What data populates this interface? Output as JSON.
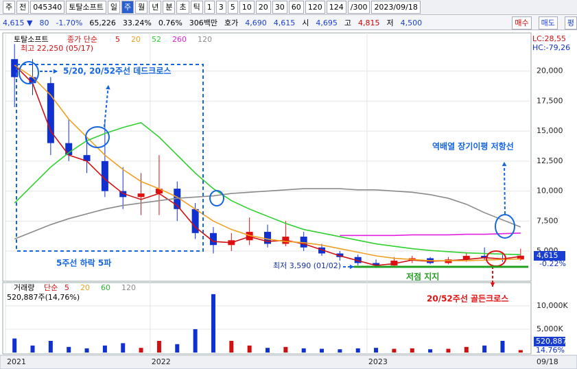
{
  "toolbar": {
    "items": [
      "주",
      "전",
      "045340",
      "토탈소프트",
      "일",
      "주",
      "월",
      "년",
      "분",
      "초",
      "틱",
      "1",
      "3",
      "5",
      "10",
      "20",
      "30",
      "60",
      "120",
      "124",
      "/300",
      "2023/09/18"
    ],
    "selected_index": 5
  },
  "quote": {
    "items": [
      {
        "text": "4,615 ▼",
        "color": "#1a3fd0"
      },
      {
        "text": "80",
        "color": "#1a3fd0"
      },
      {
        "text": "-1.70%",
        "color": "#1a3fd0"
      },
      {
        "text": "65,226",
        "color": "#000000"
      },
      {
        "text": "33.24%",
        "color": "#000000"
      },
      {
        "text": "0.76%",
        "color": "#000000"
      },
      {
        "text": "306백만",
        "color": "#000000"
      },
      {
        "text": "호가",
        "color": "#000000"
      },
      {
        "text": "4,690",
        "color": "#1a3fd0"
      },
      {
        "text": "4,615",
        "color": "#1a3fd0"
      },
      {
        "text": "시",
        "color": "#000000"
      },
      {
        "text": "4,695",
        "color": "#1a3fd0"
      },
      {
        "text": "고",
        "color": "#000000"
      },
      {
        "text": "4,815",
        "color": "#d00000"
      },
      {
        "text": "저",
        "color": "#000000"
      },
      {
        "text": "4,500",
        "color": "#1a3fd0"
      }
    ],
    "buttons": [
      "매수",
      "매도",
      "평"
    ]
  },
  "chart_data": [
    {
      "type": "candlestick",
      "title": "토탈소프트",
      "legend_title": "종가 단순",
      "high_note": "최고 22,250 (05/17)",
      "low_note": "최저 3,590 (01/02)",
      "lc": "LC:28,55",
      "hc": "HC:-79,26",
      "last_label": "4,615",
      "change_label": "-0.22%",
      "categories": [
        "2021",
        null,
        null,
        null,
        null,
        null,
        null,
        null,
        "2022",
        null,
        null,
        null,
        null,
        null,
        null,
        null,
        null,
        null,
        null,
        null,
        "2023",
        null,
        null,
        null,
        null,
        null,
        null,
        null,
        null
      ],
      "x_end_label": "09/18",
      "open": [
        21000,
        19500,
        19000,
        14000,
        13000,
        12500,
        10000,
        9500,
        9800,
        10200,
        8500,
        6500,
        5500,
        5900,
        6600,
        5600,
        6200,
        5300,
        4800,
        4500,
        4000,
        3800,
        4200,
        4400,
        4000,
        4300,
        4600,
        4400,
        4300
      ],
      "high": [
        22250,
        21000,
        19500,
        16000,
        14500,
        16000,
        12000,
        11500,
        13000,
        10800,
        9000,
        7000,
        6500,
        7800,
        7200,
        7500,
        6600,
        5600,
        5000,
        4700,
        4300,
        4500,
        4600,
        4500,
        4500,
        4900,
        5300,
        4700,
        5200
      ],
      "low": [
        17000,
        18000,
        13000,
        12500,
        11500,
        9500,
        8500,
        8000,
        8000,
        7500,
        6000,
        4800,
        5000,
        5500,
        5300,
        5400,
        5000,
        4600,
        4200,
        3800,
        3590,
        3700,
        4000,
        3900,
        3900,
        4100,
        4200,
        4100,
        4200
      ],
      "close": [
        19500,
        19000,
        14000,
        13000,
        12500,
        10000,
        9500,
        9800,
        10200,
        8500,
        6500,
        5500,
        5900,
        6600,
        5600,
        6200,
        5300,
        4800,
        4500,
        4000,
        3800,
        4200,
        4400,
        4000,
        4300,
        4600,
        4400,
        4300,
        4615
      ],
      "series": [
        {
          "name": "5",
          "color": "#d01010",
          "values": [
            20500,
            19000,
            15000,
            13000,
            12500,
            11000,
            9800,
            9300,
            9800,
            8800,
            7000,
            5800,
            5700,
            6200,
            5800,
            5900,
            5600,
            5100,
            4600,
            4200,
            3800,
            3950,
            4250,
            4150,
            4200,
            4300,
            4450,
            4350,
            4550
          ]
        },
        {
          "name": "20",
          "color": "#f0a020",
          "values": [
            20500,
            19500,
            18000,
            16000,
            14500,
            13000,
            11800,
            10800,
            10200,
            9500,
            8500,
            7500,
            6800,
            6300,
            6000,
            5800,
            5700,
            5500,
            5200,
            4900,
            4600,
            4400,
            4300,
            4200,
            4200,
            4200,
            4250,
            4300,
            4350
          ]
        },
        {
          "name": "52",
          "color": "#30d030",
          "values": [
            9000,
            10500,
            12000,
            13200,
            14200,
            14800,
            15300,
            15700,
            14500,
            13000,
            11500,
            10200,
            9200,
            8500,
            7900,
            7300,
            6800,
            6500,
            6200,
            5900,
            5600,
            5400,
            5200,
            5050,
            4950,
            4850,
            4800,
            4750,
            4700
          ]
        },
        {
          "name": "260",
          "color": "#e020e0",
          "values": [
            null,
            null,
            null,
            null,
            null,
            null,
            null,
            null,
            null,
            null,
            null,
            null,
            null,
            null,
            null,
            null,
            null,
            null,
            6300,
            6300,
            6300,
            6300,
            6350,
            6350,
            6350,
            6400,
            6400,
            6450,
            6500
          ]
        },
        {
          "name": "120",
          "color": "#8a8a8a",
          "values": [
            6000,
            6600,
            7200,
            7700,
            8100,
            8500,
            8800,
            9000,
            9200,
            9400,
            9500,
            9600,
            9800,
            9900,
            10000,
            10100,
            10200,
            10200,
            10200,
            10100,
            10100,
            10000,
            9900,
            9700,
            9400,
            8900,
            8200,
            7600,
            7000
          ]
        }
      ],
      "ylim": [
        3000,
        22500
      ],
      "yticks": [
        {
          "value": 5000,
          "label": "5,000"
        },
        {
          "value": 7500,
          "label": "7,500"
        },
        {
          "value": 10000,
          "label": "10,000"
        },
        {
          "value": 12500,
          "label": "12,500"
        },
        {
          "value": 15000,
          "label": "15,000"
        },
        {
          "value": 17500,
          "label": "17,500"
        },
        {
          "value": 20000,
          "label": "20,000"
        }
      ],
      "grid": true,
      "annotations": [
        "5/20, 20/52주선 데드크로스",
        "역배열 장기이평 저항선",
        "5주선 하락 5파",
        "저점 지지",
        "20/52주선 골든크로스"
      ]
    },
    {
      "type": "bar",
      "title": "거래량",
      "legend_title": "단순",
      "legend": [
        {
          "name": "5",
          "color": "#d01010"
        },
        {
          "name": "20",
          "color": "#f0a020"
        },
        {
          "name": "60",
          "color": "#30b030"
        },
        {
          "name": "120",
          "color": "#8a8a8a"
        }
      ],
      "info": "520,887주(14,76%)",
      "last_label": "520,887",
      "ratio_label": "14.76%",
      "color": "#d01010",
      "values": [
        3000,
        1500,
        2500,
        1200,
        900,
        1500,
        2000,
        1000,
        2500,
        1800,
        5000,
        12500,
        2500,
        1500,
        1000,
        1200,
        900,
        800,
        700,
        900,
        1000,
        800,
        900,
        700,
        800,
        1200,
        1500,
        2500,
        520.887
      ],
      "ylim": [
        0,
        13800
      ],
      "yticks": [
        {
          "value": 5000,
          "label": "5,000K"
        },
        {
          "value": 10000,
          "label": "10,000K"
        }
      ],
      "grid": true
    }
  ]
}
